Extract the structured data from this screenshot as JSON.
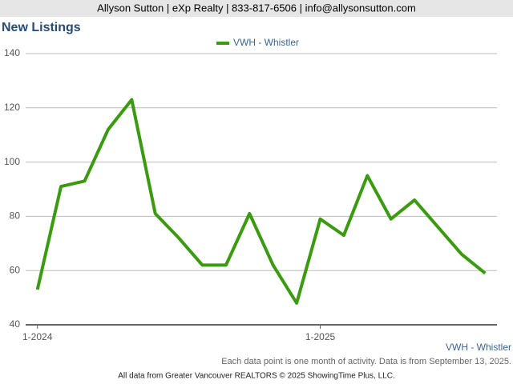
{
  "header": "Allyson Sutton | eXp Realty | 833-817-6506 | info@allysonsutton.com",
  "chart_data": {
    "type": "line",
    "title": "New Listings",
    "categories": [
      "1-2024",
      null,
      null,
      null,
      null,
      null,
      null,
      null,
      null,
      null,
      null,
      null,
      "1-2025",
      null,
      null,
      null,
      null,
      null,
      null,
      null
    ],
    "series": [
      {
        "name": "VWH - Whistler",
        "color": "#3a9a10",
        "values": [
          53,
          91,
          93,
          112,
          123,
          81,
          72,
          62,
          62,
          81,
          62,
          48,
          79,
          73,
          95,
          79,
          86,
          76,
          66,
          59
        ]
      }
    ],
    "ylim": [
      40,
      140
    ],
    "yticks": [
      40,
      60,
      80,
      100,
      120,
      140
    ],
    "grid": true,
    "legend": "top",
    "notes": [
      "Each data point is one month of activity. Data is from September 13, 2025."
    ]
  },
  "footer": "All data from Greater Vancouver REALTORS © 2025 ShowingTime Plus, LLC."
}
